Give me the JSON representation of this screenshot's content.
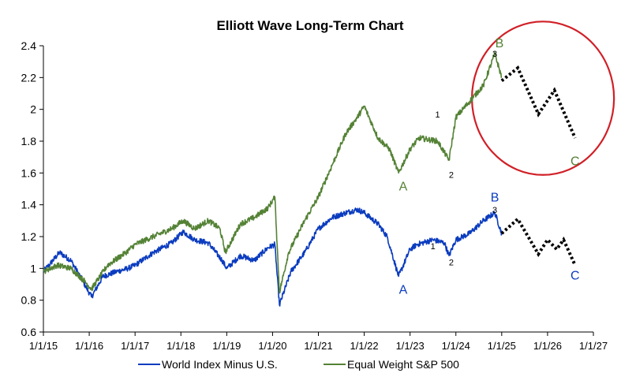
{
  "chart_data": {
    "type": "line",
    "title": "Elliott Wave Long-Term Chart",
    "xlabel": "",
    "ylabel": "",
    "ylim": [
      0.6,
      2.4
    ],
    "yticks": [
      0.6,
      0.8,
      1,
      1.2,
      1.4,
      1.6,
      1.8,
      2,
      2.2,
      2.4
    ],
    "xlim": [
      2015,
      2027
    ],
    "xticks": [
      "1/1/15",
      "1/1/16",
      "1/1/17",
      "1/1/18",
      "1/1/19",
      "1/1/20",
      "1/1/21",
      "1/1/22",
      "1/1/23",
      "1/1/24",
      "1/1/25",
      "1/1/26",
      "1/1/27"
    ],
    "grid": false,
    "legend": "bottom",
    "series": [
      {
        "name": "World Index Minus U.S.",
        "color": "#0b3cbf",
        "x": [
          2015.0,
          2015.15,
          2015.35,
          2015.6,
          2015.8,
          2016.05,
          2016.3,
          2016.6,
          2016.85,
          2017.0,
          2017.4,
          2017.8,
          2018.05,
          2018.3,
          2018.6,
          2018.9,
          2019.0,
          2019.3,
          2019.6,
          2019.9,
          2020.05,
          2020.15,
          2020.4,
          2020.7,
          2021.0,
          2021.3,
          2021.6,
          2021.85,
          2022.0,
          2022.3,
          2022.5,
          2022.75,
          2023.0,
          2023.15,
          2023.5,
          2023.75,
          2023.85,
          2024.0,
          2024.3,
          2024.6,
          2024.85,
          2025.0
        ],
        "y": [
          0.98,
          1.03,
          1.1,
          1.05,
          0.95,
          0.82,
          0.95,
          0.98,
          1.0,
          1.02,
          1.1,
          1.16,
          1.23,
          1.18,
          1.16,
          1.05,
          1.0,
          1.08,
          1.05,
          1.13,
          1.15,
          0.77,
          0.98,
          1.1,
          1.25,
          1.32,
          1.35,
          1.37,
          1.35,
          1.28,
          1.2,
          0.95,
          1.12,
          1.15,
          1.18,
          1.16,
          1.08,
          1.18,
          1.22,
          1.3,
          1.35,
          1.22
        ]
      },
      {
        "name": "Equal Weight S&P 500",
        "color": "#548235",
        "x": [
          2015.0,
          2015.3,
          2015.6,
          2015.9,
          2016.05,
          2016.4,
          2016.8,
          2017.0,
          2017.4,
          2017.8,
          2018.05,
          2018.3,
          2018.6,
          2018.85,
          2018.97,
          2019.3,
          2019.6,
          2019.9,
          2020.05,
          2020.15,
          2020.35,
          2020.7,
          2021.0,
          2021.3,
          2021.6,
          2021.85,
          2022.0,
          2022.3,
          2022.55,
          2022.75,
          2023.0,
          2023.2,
          2023.6,
          2023.85,
          2024.0,
          2024.3,
          2024.6,
          2024.85,
          2025.0
        ],
        "y": [
          0.98,
          1.02,
          1.0,
          0.92,
          0.87,
          1.02,
          1.1,
          1.15,
          1.2,
          1.25,
          1.3,
          1.25,
          1.3,
          1.25,
          1.1,
          1.28,
          1.32,
          1.38,
          1.45,
          0.85,
          1.1,
          1.3,
          1.45,
          1.65,
          1.85,
          1.95,
          2.02,
          1.82,
          1.75,
          1.6,
          1.75,
          1.82,
          1.8,
          1.68,
          1.95,
          2.05,
          2.15,
          2.35,
          2.2
        ]
      }
    ],
    "projections": [
      {
        "of": "Equal Weight S&P 500",
        "x": [
          2025.0,
          2025.35,
          2025.8,
          2026.15,
          2026.6
        ],
        "y": [
          2.18,
          2.26,
          1.97,
          2.12,
          1.82
        ]
      },
      {
        "of": "World Index Minus U.S.",
        "x": [
          2025.0,
          2025.35,
          2025.8,
          2026.0,
          2026.2,
          2026.35,
          2026.6
        ],
        "y": [
          1.22,
          1.31,
          1.09,
          1.18,
          1.12,
          1.18,
          1.02
        ]
      }
    ],
    "annotations": [
      {
        "text": "B",
        "x": 2024.95,
        "y": 2.39,
        "color": "#548235",
        "size": "big"
      },
      {
        "text": "3",
        "x": 2024.85,
        "y": 2.33,
        "color": "#000000",
        "size": "small"
      },
      {
        "text": "1",
        "x": 2023.6,
        "y": 1.95,
        "color": "#000000",
        "size": "small"
      },
      {
        "text": "2",
        "x": 2023.9,
        "y": 1.57,
        "color": "#000000",
        "size": "small"
      },
      {
        "text": "A",
        "x": 2022.85,
        "y": 1.49,
        "color": "#548235",
        "size": "big"
      },
      {
        "text": "C",
        "x": 2026.6,
        "y": 1.65,
        "color": "#548235",
        "size": "big"
      },
      {
        "text": "B",
        "x": 2024.85,
        "y": 1.42,
        "color": "#0b3cbf",
        "size": "big"
      },
      {
        "text": "3",
        "x": 2024.85,
        "y": 1.35,
        "color": "#000000",
        "size": "small"
      },
      {
        "text": "1",
        "x": 2023.5,
        "y": 1.12,
        "color": "#000000",
        "size": "small"
      },
      {
        "text": "2",
        "x": 2023.9,
        "y": 1.02,
        "color": "#000000",
        "size": "small"
      },
      {
        "text": "A",
        "x": 2022.85,
        "y": 0.84,
        "color": "#0b3cbf",
        "size": "big"
      },
      {
        "text": "C",
        "x": 2026.6,
        "y": 0.93,
        "color": "#0b3cbf",
        "size": "big"
      }
    ],
    "highlight": {
      "shape": "circle",
      "color": "#d11f27",
      "center_x": 2025.9,
      "center_y": 2.07,
      "radius_years": 1.55
    }
  }
}
